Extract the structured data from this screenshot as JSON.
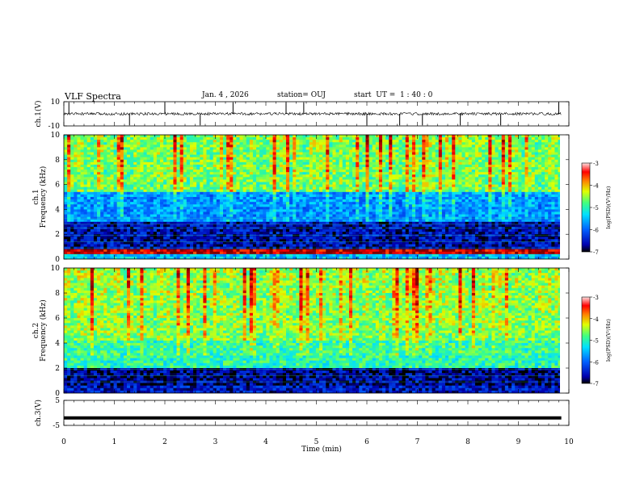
{
  "header": {
    "title": "VLF Spectra",
    "date": "Jan. 4 , 2026",
    "station": "station= OUJ",
    "start": "start  UT =  1 : 40 : 0"
  },
  "colors": {
    "colormap": [
      "#00007f",
      "#0000ff",
      "#007fff",
      "#00ffff",
      "#7fff7f",
      "#ffff00",
      "#ff7f00",
      "#ff0000",
      "#7f0000"
    ]
  },
  "chart_data": [
    {
      "type": "line",
      "name": "ch1-waveform",
      "ylabel": "ch.1(V)",
      "ylim": [
        -10,
        10
      ],
      "yticks": [
        "10",
        "-10"
      ],
      "baseline_value": 0,
      "xlim": [
        0,
        10
      ],
      "spikes_min": [
        0.1,
        1.3,
        2.0,
        2.7,
        3.35,
        4.4,
        4.75,
        6.0,
        6.65,
        7.1,
        7.85,
        8.65,
        9.8
      ]
    },
    {
      "type": "heatmap",
      "name": "ch1-spectrogram",
      "ylabel": "ch.1\nFrequency (kHz)",
      "ylim": [
        0,
        10
      ],
      "yticks": [
        "0",
        "2",
        "4",
        "6",
        "8",
        "10"
      ],
      "xlim": [
        0,
        9.85
      ],
      "colorbar": {
        "label": "log(PSD)(V²/Hz)",
        "range": [
          -7,
          -3
        ],
        "ticks": [
          "-3",
          "-4",
          "-5",
          "-6",
          "-7"
        ]
      },
      "description_bands_khz": [
        {
          "from": 0.0,
          "to": 0.5,
          "level": -5.5
        },
        {
          "from": 0.5,
          "to": 0.7,
          "level": -3.2
        },
        {
          "from": 0.7,
          "to": 3.0,
          "level": -6.6
        },
        {
          "from": 3.0,
          "to": 5.5,
          "level": -5.8
        },
        {
          "from": 5.5,
          "to": 10.0,
          "level": -4.8
        }
      ]
    },
    {
      "type": "heatmap",
      "name": "ch2-spectrogram",
      "ylabel": "ch.2\nFrequency (kHz)",
      "ylim": [
        0,
        10
      ],
      "yticks": [
        "0",
        "2",
        "4",
        "6",
        "8",
        "10"
      ],
      "xlim": [
        0,
        9.85
      ],
      "colorbar": {
        "label": "log(PSD)(V²/Hz)",
        "range": [
          -7,
          -3
        ],
        "ticks": [
          "-3",
          "-4",
          "-5",
          "-6",
          "-7"
        ]
      },
      "description_bands_khz": [
        {
          "from": 0.0,
          "to": 0.6,
          "level": -6.5
        },
        {
          "from": 0.6,
          "to": 2.0,
          "level": -6.7
        },
        {
          "from": 2.0,
          "to": 4.3,
          "level": -5.0
        },
        {
          "from": 4.3,
          "to": 10.0,
          "level": -4.7
        }
      ]
    },
    {
      "type": "line",
      "name": "ch3-waveform",
      "ylabel": "ch.3(V)",
      "ylim": [
        -5,
        5
      ],
      "yticks": [
        "5",
        "-5"
      ],
      "constant_value": -2.0,
      "xlim": [
        0,
        9.85
      ]
    }
  ],
  "xaxis": {
    "label": "Time (min)",
    "range": [
      0,
      10
    ],
    "ticks": [
      "0",
      "1",
      "2",
      "3",
      "4",
      "5",
      "6",
      "7",
      "8",
      "9",
      "10"
    ]
  }
}
